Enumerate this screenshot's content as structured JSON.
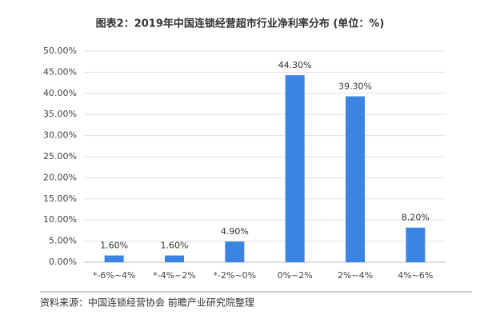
{
  "chart_data": {
    "type": "bar",
    "title": "图表2：2019年中国连锁经营超市行业净利率分布 (单位：%)",
    "categories": [
      "*-6%~4%",
      "*-4%~2%",
      "*-2%~0%",
      "0%~2%",
      "2%~4%",
      "4%~6%"
    ],
    "values": [
      1.6,
      1.6,
      4.9,
      44.3,
      39.3,
      8.2
    ],
    "value_labels": [
      "1.60%",
      "1.60%",
      "4.90%",
      "44.30%",
      "39.30%",
      "8.20%"
    ],
    "color": "#3c84e4",
    "ylim": [
      0,
      50
    ],
    "yticks": [
      {
        "value": 0,
        "label": "0.00%"
      },
      {
        "value": 5,
        "label": "5.00%"
      },
      {
        "value": 10,
        "label": "10.00%"
      },
      {
        "value": 15,
        "label": "15.00%"
      },
      {
        "value": 20,
        "label": "20.00%"
      },
      {
        "value": 25,
        "label": "25.00%"
      },
      {
        "value": 30,
        "label": "30.00%"
      },
      {
        "value": 35,
        "label": "35.00%"
      },
      {
        "value": 40,
        "label": "40.00%"
      },
      {
        "value": 45,
        "label": "45.00%"
      },
      {
        "value": 50,
        "label": "50.00%"
      }
    ],
    "grid": true,
    "source": "资料来源：中国连锁经营协会 前瞻产业研究院整理"
  }
}
